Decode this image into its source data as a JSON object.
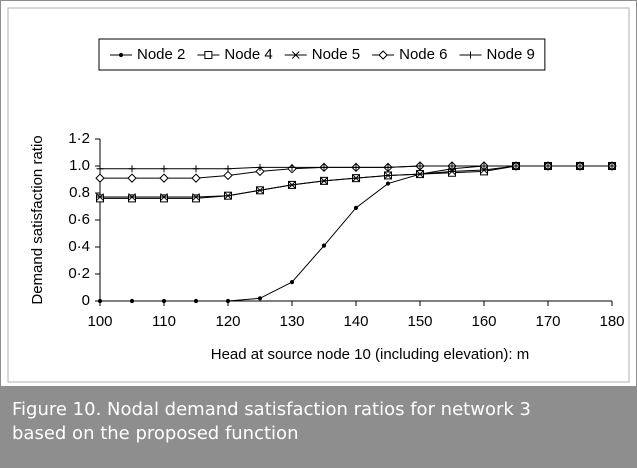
{
  "chart_data": {
    "type": "line",
    "caption": "Figure 10. Nodal demand satisfaction ratios for network 3 based on the proposed function",
    "xlabel": "Head at source node 10 (including elevation): m",
    "ylabel": "Demand satisfaction ratio",
    "x": [
      100,
      105,
      110,
      115,
      120,
      125,
      130,
      135,
      140,
      145,
      150,
      155,
      160,
      165,
      170,
      175,
      180
    ],
    "xlim": [
      100,
      180
    ],
    "xticks": [
      100,
      110,
      120,
      130,
      140,
      150,
      160,
      170,
      180
    ],
    "ylim": [
      0,
      1.2
    ],
    "yticks": [
      0,
      {
        "value": 0.2,
        "label": "0·2"
      },
      {
        "value": 0.4,
        "label": "0·4"
      },
      {
        "value": 0.6,
        "label": "0·6"
      },
      {
        "value": 0.8,
        "label": "0.8"
      },
      {
        "value": 1.0,
        "label": "1.0"
      },
      {
        "value": 1.2,
        "label": "1·2"
      }
    ],
    "legend": "top",
    "series": [
      {
        "name": "Node 2",
        "color": "#000000",
        "marker": "dot",
        "values": [
          0,
          0,
          0,
          0,
          0,
          0.02,
          0.14,
          0.41,
          0.69,
          0.87,
          0.94,
          0.98,
          1.0,
          1.0,
          1.0,
          1.0,
          1.0
        ]
      },
      {
        "name": "Node 4",
        "color": "#000000",
        "marker": "square",
        "values": [
          0.76,
          0.76,
          0.76,
          0.76,
          0.78,
          0.82,
          0.86,
          0.89,
          0.91,
          0.93,
          0.94,
          0.95,
          0.96,
          1.0,
          1.0,
          1.0,
          1.0
        ]
      },
      {
        "name": "Node 5",
        "color": "#000000",
        "marker": "star",
        "values": [
          0.77,
          0.77,
          0.77,
          0.77,
          0.78,
          0.82,
          0.86,
          0.89,
          0.91,
          0.93,
          0.94,
          0.96,
          0.97,
          1.0,
          1.0,
          1.0,
          1.0
        ]
      },
      {
        "name": "Node 6",
        "color": "#000000",
        "marker": "diamond",
        "values": [
          0.91,
          0.91,
          0.91,
          0.91,
          0.93,
          0.96,
          0.98,
          0.99,
          0.99,
          0.99,
          1.0,
          1.0,
          1.0,
          1.0,
          1.0,
          1.0,
          1.0
        ]
      },
      {
        "name": "Node 9",
        "color": "#000000",
        "marker": "plus",
        "values": [
          0.98,
          0.98,
          0.98,
          0.98,
          0.98,
          0.99,
          0.99,
          0.99,
          0.99,
          0.99,
          1.0,
          1.0,
          1.0,
          1.0,
          1.0,
          1.0,
          1.0
        ]
      }
    ]
  }
}
